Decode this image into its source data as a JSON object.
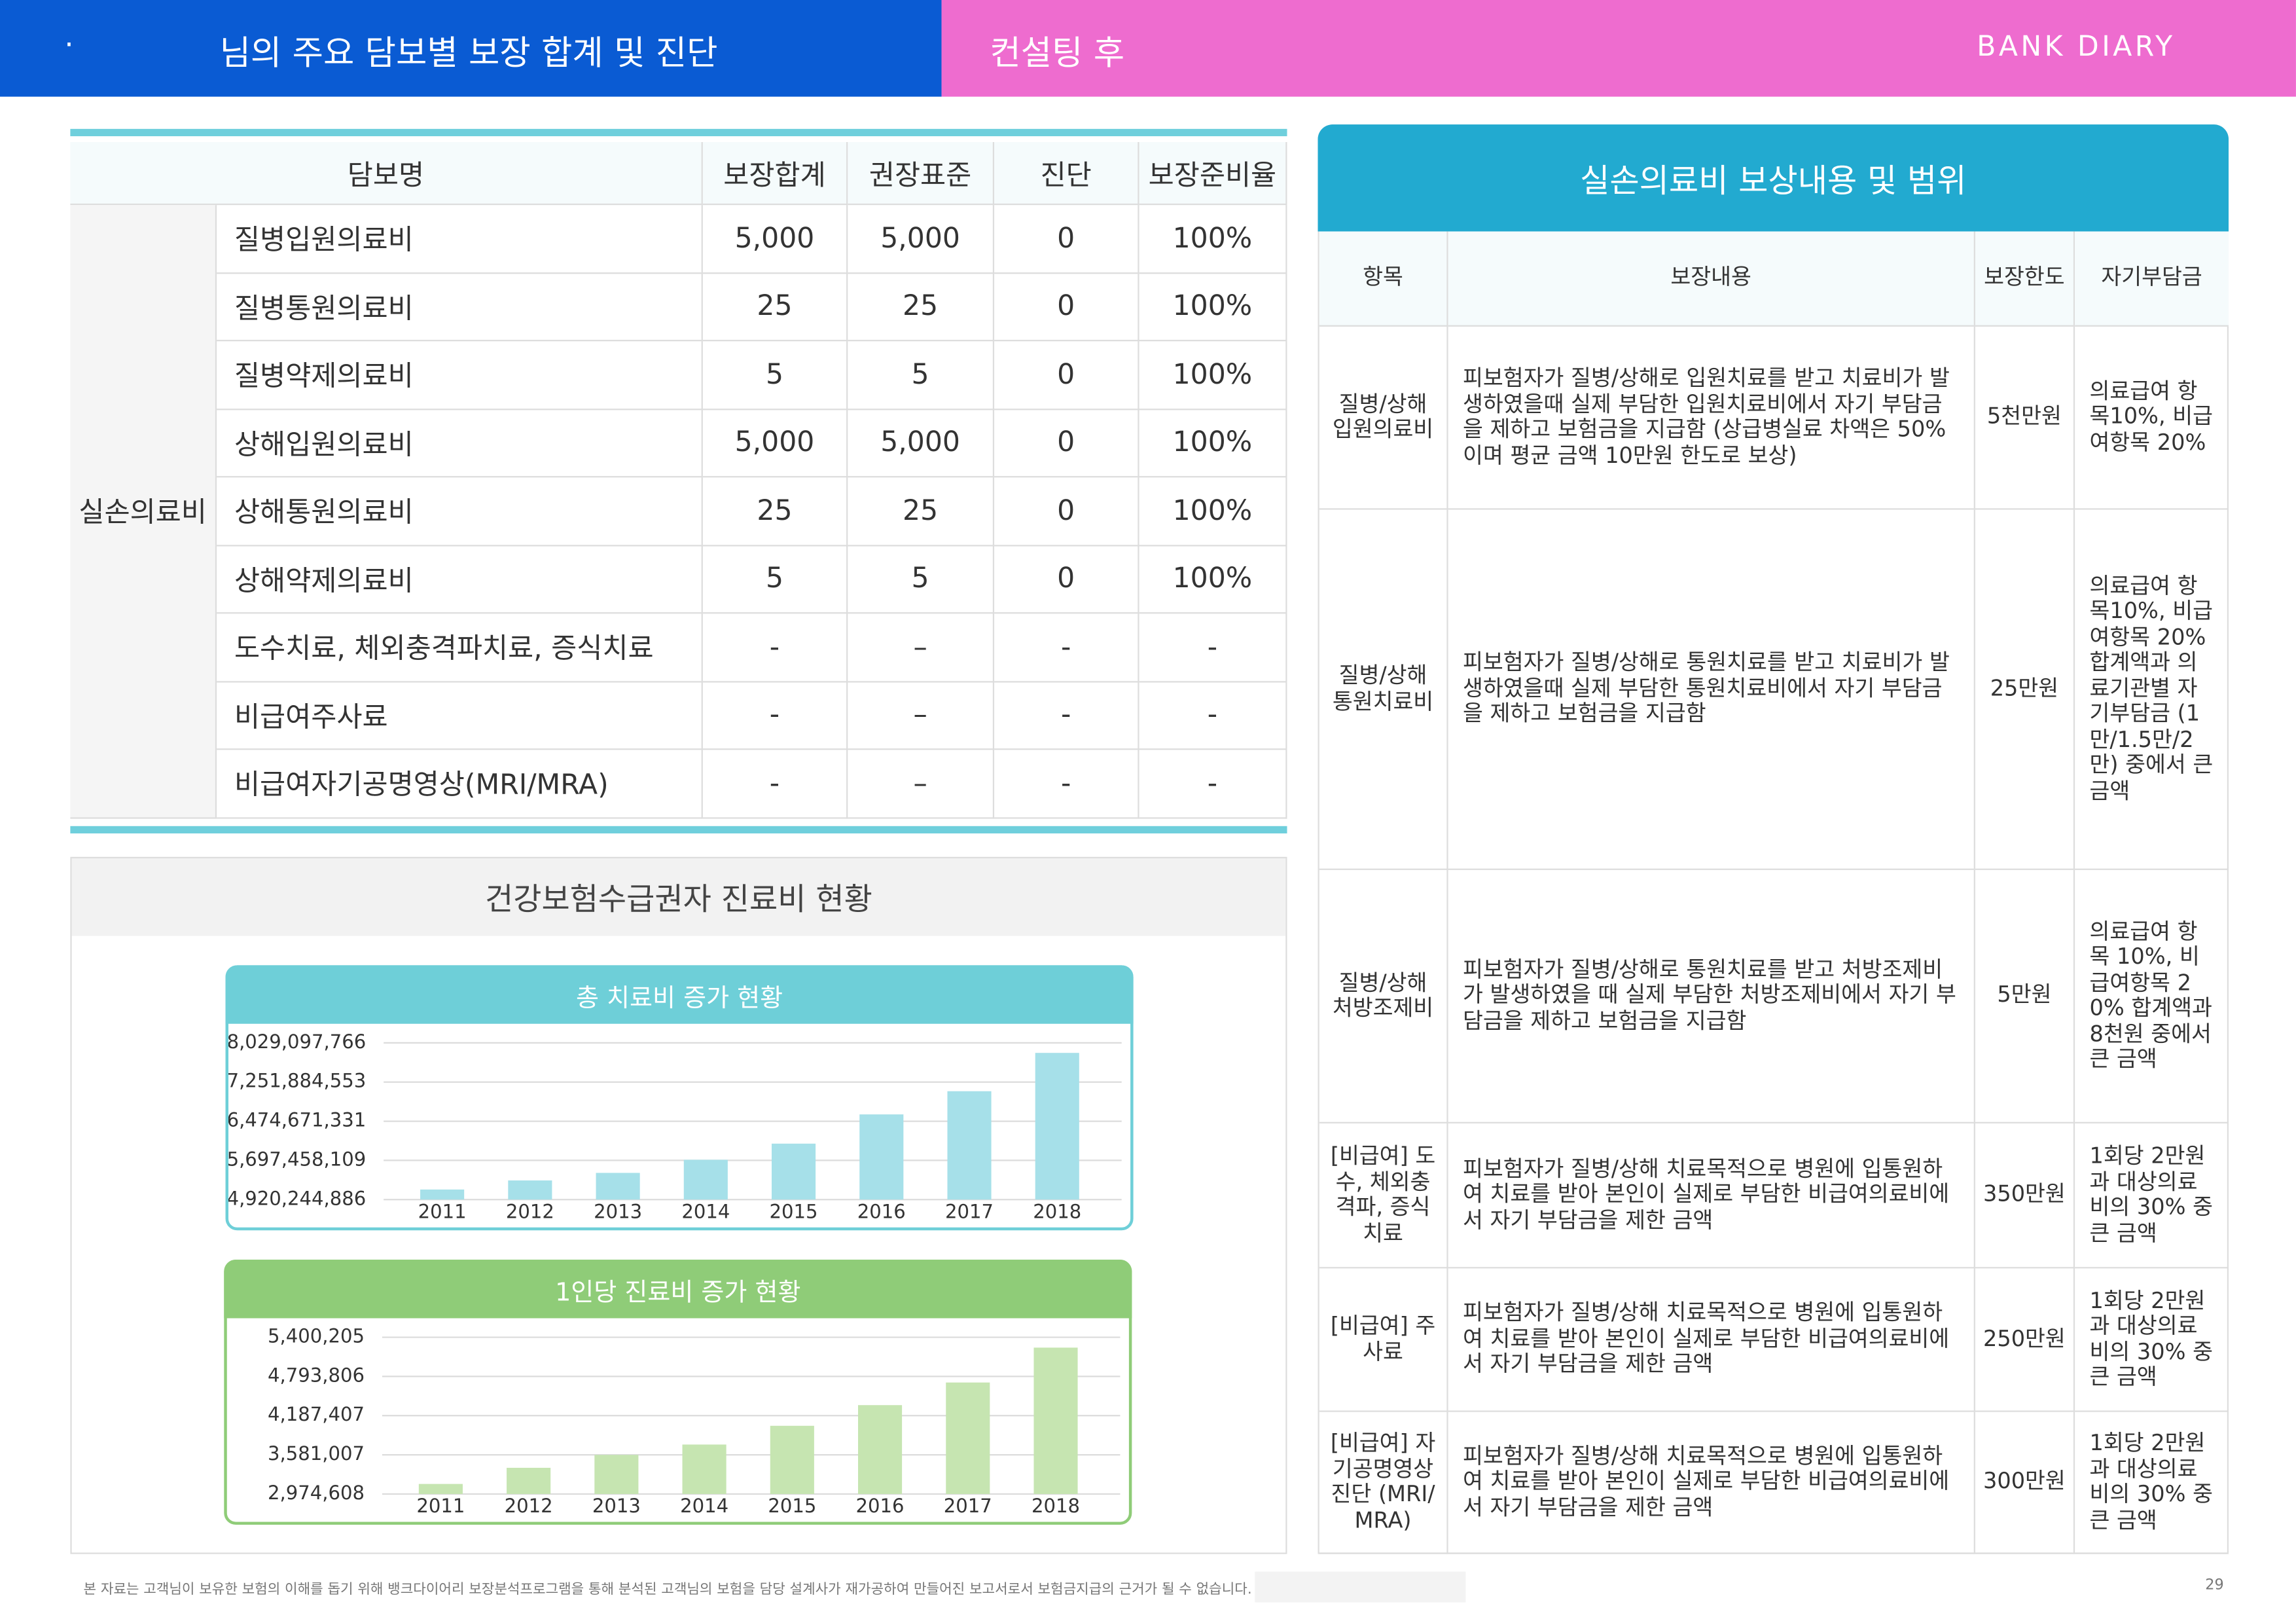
{
  "header": {
    "dot": "·",
    "title": "님의 주요 담보별 보장 합계 및 진단",
    "subtitle": "컨설팅 후",
    "logo": "BANK DIARY"
  },
  "coverage_table": {
    "columns": [
      "담보명",
      "보장합계",
      "권장표준",
      "진단",
      "보장준비율"
    ],
    "group": "실손의료비",
    "rows": [
      [
        "질병입원의료비",
        "5,000",
        "5,000",
        "0",
        "100%"
      ],
      [
        "질병통원의료비",
        "25",
        "25",
        "0",
        "100%"
      ],
      [
        "질병약제의료비",
        "5",
        "5",
        "0",
        "100%"
      ],
      [
        "상해입원의료비",
        "5,000",
        "5,000",
        "0",
        "100%"
      ],
      [
        "상해통원의료비",
        "25",
        "25",
        "0",
        "100%"
      ],
      [
        "상해약제의료비",
        "5",
        "5",
        "0",
        "100%"
      ],
      [
        "도수치료, 체외충격파치료, 증식치료",
        "-",
        "–",
        "-",
        "-"
      ],
      [
        "비급여주사료",
        "-",
        "–",
        "-",
        "-"
      ],
      [
        "비급여자기공명영상(MRI/MRA)",
        "-",
        "–",
        "-",
        "-"
      ]
    ]
  },
  "panel_title": "건강보험수급권자 진료비 현황",
  "chart_data": [
    {
      "type": "bar",
      "title": "총 치료비 증가 현황",
      "categories": [
        "2011",
        "2012",
        "2013",
        "2014",
        "2015",
        "2016",
        "2017",
        "2018"
      ],
      "values": [
        5120000000,
        5300000000,
        5450000000,
        5710000000,
        6030000000,
        6610000000,
        7070000000,
        7830000000
      ],
      "color": "#a6e0e9",
      "header_color": "#6ecfd8",
      "ylim": [
        4920244886,
        8029097766
      ],
      "yticks": [
        {
          "value": 4920244886,
          "label": "4,920,244,886"
        },
        {
          "value": 5697458109,
          "label": "5,697,458,109"
        },
        {
          "value": 6474671331,
          "label": "6,474,671,331"
        },
        {
          "value": 7251884553,
          "label": "7,251,884,553"
        },
        {
          "value": 8029097766,
          "label": "8,029,097,766"
        }
      ],
      "grid": true
    },
    {
      "type": "bar",
      "title": "1인당 진료비 증가 현황",
      "categories": [
        "2011",
        "2012",
        "2013",
        "2014",
        "2015",
        "2016",
        "2017",
        "2018"
      ],
      "values": [
        3130000,
        3380000,
        3580000,
        3740000,
        4030000,
        4350000,
        4700000,
        5240000
      ],
      "color": "#c6e5b1",
      "header_color": "#8fcc78",
      "ylim": [
        2974608,
        5400205
      ],
      "yticks": [
        {
          "value": 2974608,
          "label": "2,974,608"
        },
        {
          "value": 3581007,
          "label": "3,581,007"
        },
        {
          "value": 4187407,
          "label": "4,187,407"
        },
        {
          "value": 4793806,
          "label": "4,793,806"
        },
        {
          "value": 5400205,
          "label": "5,400,205"
        }
      ],
      "grid": true
    }
  ],
  "compensation_table": {
    "title": "실손의료비 보상내용 및 범위",
    "columns": [
      "항목",
      "보장내용",
      "보장한도",
      "자기부담금"
    ],
    "rows": [
      [
        "질병/상해 입원의료비",
        "피보험자가 질병/상해로 입원치료를 받고 치료비가 발생하였을때 실제 부담한 입원치료비에서 자기 부담금을 제하고 보험금을 지급함 (상급병실료 차액은 50%이며 평균 금액 10만원 한도로 보상)",
        "5천만원",
        "의료급여 항목10%, 비급여항목 20%"
      ],
      [
        "질병/상해 통원치료비",
        "피보험자가 질병/상해로 통원치료를 받고 치료비가 발생하였을때 실제 부담한 통원치료비에서 자기 부담금을 제하고 보험금을 지급함",
        "25만원",
        "의료급여 항목10%, 비급여항목 20% 합계액과 의료기관별 자기부담금 (1만/1.5만/2만) 중에서 큰 금액"
      ],
      [
        "질병/상해 처방조제비",
        "피보험자가 질병/상해로 통원치료를 받고 처방조제비가 발생하였을 때 실제 부담한 처방조제비에서 자기 부담금을 제하고 보험금을 지급함",
        "5만원",
        "의료급여 항목 10%, 비급여항목 20% 합계액과 8천원 중에서 큰 금액"
      ],
      [
        "[비급여] 도수, 체외충격파, 증식치료",
        "피보험자가 질병/상해 치료목적으로 병원에 입통원하여 치료를 받아 본인이 실제로 부담한 비급여의료비에서 자기 부담금을 제한 금액",
        "350만원",
        "1회당 2만원과 대상의료비의 30% 중 큰 금액"
      ],
      [
        "[비급여] 주사료",
        "피보험자가 질병/상해 치료목적으로 병원에 입통원하여 치료를 받아 본인이 실제로 부담한 비급여의료비에서 자기 부담금을 제한 금액",
        "250만원",
        "1회당 2만원과 대상의료비의 30% 중 큰 금액"
      ],
      [
        "[비급여] 자기공명영상진단 (MRI/MRA)",
        "피보험자가 질병/상해 치료목적으로 병원에 입통원하여 치료를 받아 본인이 실제로 부담한 비급여의료비에서 자기 부담금을 제한 금액",
        "300만원",
        "1회당 2만원과 대상의료비의 30% 중 큰 금액"
      ]
    ]
  },
  "footer": {
    "note": "본 자료는 고객님이 보유한 보험의 이해를 돕기 위해 뱅크다이어리 보장분석프로그램을 통해 분석된 고객님의 보험을 담당 설계사가 재가공하여 만들어진 보고서로서 보험금지급의 근거가 될 수 없습니다.",
    "page": "29"
  }
}
